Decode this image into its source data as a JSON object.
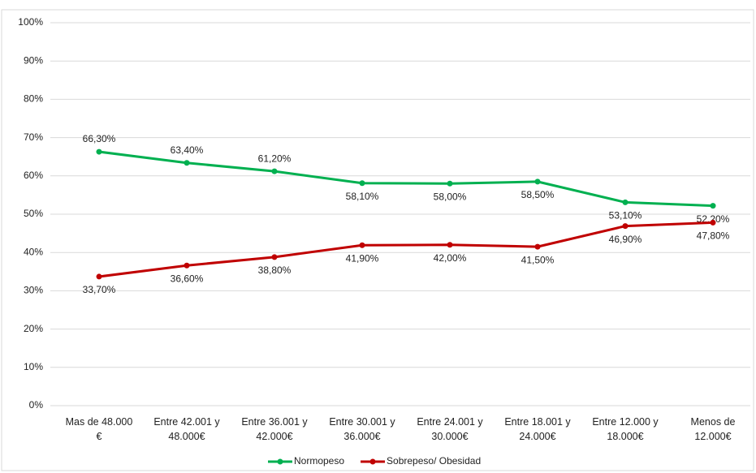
{
  "chart_data": {
    "type": "line",
    "categories": [
      "Mas de 48.000\n€",
      "Entre 42.001 y\n48.000€",
      "Entre 36.001 y\n42.000€",
      "Entre 30.001 y\n36.000€",
      "Entre 24.001 y\n30.000€",
      "Entre 18.001 y\n24.000€",
      "Entre 12.000 y\n18.000€",
      "Menos de\n12.000€"
    ],
    "series": [
      {
        "name": "Normopeso",
        "color": "#00b050",
        "values": [
          66.3,
          63.4,
          61.2,
          58.1,
          58.0,
          58.5,
          53.1,
          52.2
        ],
        "value_labels": [
          "66,30%",
          "63,40%",
          "61,20%",
          "58,10%",
          "58,00%",
          "58,50%",
          "53,10%",
          "52,20%"
        ]
      },
      {
        "name": "Sobrepeso/ Obesidad",
        "color": "#c00000",
        "values": [
          33.7,
          36.6,
          38.8,
          41.9,
          42.0,
          41.5,
          46.9,
          47.8
        ],
        "value_labels": [
          "33,70%",
          "36,60%",
          "38,80%",
          "41,90%",
          "42,00%",
          "41,50%",
          "46,90%",
          "47,80%"
        ]
      }
    ],
    "ylim": [
      0,
      100
    ],
    "yticks": [
      {
        "value": 0,
        "label": "0%"
      },
      {
        "value": 10,
        "label": "10%"
      },
      {
        "value": 20,
        "label": "20%"
      },
      {
        "value": 30,
        "label": "30%"
      },
      {
        "value": 40,
        "label": "40%"
      },
      {
        "value": 50,
        "label": "50%"
      },
      {
        "value": 60,
        "label": "60%"
      },
      {
        "value": 70,
        "label": "70%"
      },
      {
        "value": 80,
        "label": "80%"
      },
      {
        "value": 90,
        "label": "90%"
      },
      {
        "value": 100,
        "label": "100%"
      }
    ],
    "grid": true,
    "legend": "bottom"
  }
}
